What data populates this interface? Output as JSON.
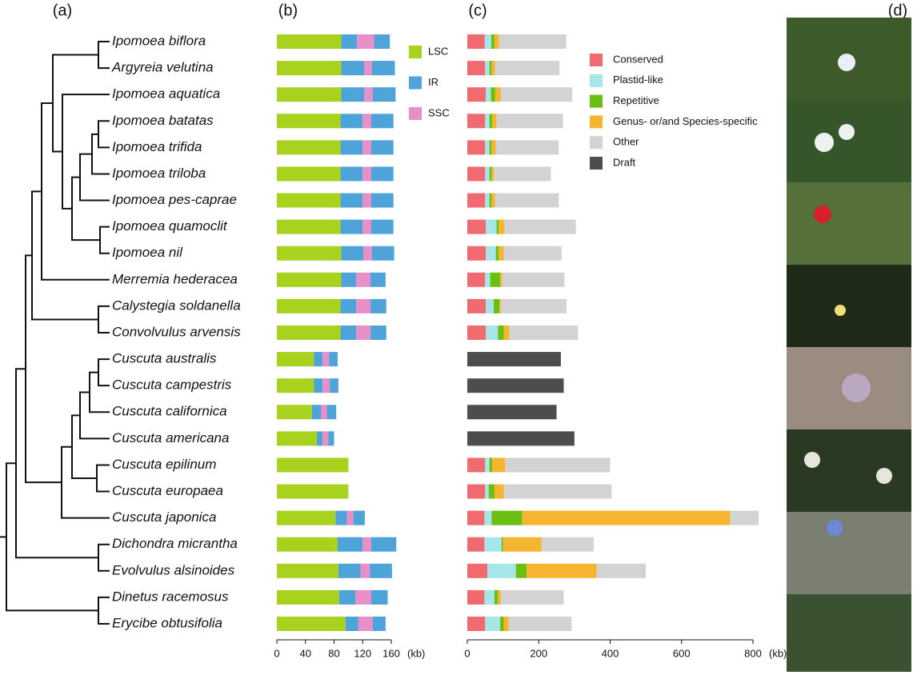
{
  "panel_labels": [
    "(a)",
    "(b)",
    "(c)",
    "(d)"
  ],
  "chart_data": [
    {
      "type": "bar",
      "orientation": "horizontal",
      "stacked": true,
      "categories": [
        "Ipomoea biflora",
        "Argyreia velutina",
        "Ipomoea aquatica",
        "Ipomoea batatas",
        "Ipomoea trifida",
        "Ipomoea triloba",
        "Ipomoea pes-caprae",
        "Ipomoea quamoclit",
        "Ipomoea nil",
        "Merremia hederacea",
        "Calystegia soldanella",
        "Convolvulus arvensis",
        "Cuscuta australis",
        "Cuscuta campestris",
        "Cuscuta californica",
        "Cuscuta americana",
        "Cuscuta epilinum",
        "Cuscuta europaea",
        "Cuscuta japonica",
        "Dichondra micrantha",
        "Evolvulus alsinoides",
        "Dinetus racemosus",
        "Erycibe obtusifolia"
      ],
      "series": [
        {
          "name": "LSC",
          "color": "#a8d21e",
          "values": [
            90,
            90,
            90,
            89,
            89,
            89,
            89,
            89,
            90,
            90,
            89,
            89,
            52,
            52,
            49,
            56,
            100,
            100,
            82,
            85,
            86,
            87,
            96
          ]
        },
        {
          "name": "IR",
          "color": "#4ea3d8",
          "values": [
            22,
            32,
            32,
            31,
            31,
            31,
            31,
            31,
            31,
            21,
            22,
            22,
            12,
            12,
            13,
            8,
            0,
            0,
            16,
            35,
            31,
            23,
            18
          ]
        },
        {
          "name": "SSC",
          "color": "#e68fc8",
          "values": [
            24,
            11,
            12,
            12,
            12,
            12,
            12,
            12,
            12,
            20,
            20,
            20,
            9,
            10,
            8,
            8,
            0,
            0,
            9,
            12,
            13,
            22,
            20
          ]
        }
      ],
      "xlim": [
        0,
        160
      ],
      "xticks": [
        0,
        40,
        80,
        120,
        160
      ],
      "x_unit": "(kb)"
    },
    {
      "type": "bar",
      "orientation": "horizontal",
      "stacked": true,
      "series": [
        {
          "name": "Conserved",
          "color": "#ef6b6f",
          "values": [
            49,
            50,
            52,
            50,
            50,
            50,
            50,
            52,
            52,
            50,
            52,
            52,
            null,
            null,
            null,
            null,
            50,
            50,
            48,
            48,
            56,
            48,
            50
          ]
        },
        {
          "name": "Plastid-like",
          "color": "#a6e6e8",
          "values": [
            18,
            12,
            14,
            12,
            12,
            12,
            12,
            30,
            28,
            14,
            22,
            34,
            null,
            null,
            null,
            null,
            12,
            10,
            20,
            48,
            80,
            28,
            42
          ]
        },
        {
          "name": "Repetitive",
          "color": "#6abf12",
          "values": [
            9,
            6,
            12,
            8,
            6,
            6,
            6,
            6,
            8,
            28,
            16,
            16,
            null,
            null,
            null,
            null,
            8,
            16,
            86,
            4,
            30,
            10,
            10
          ]
        },
        {
          "name": "Genus- or/and Species-specific",
          "color": "#f6b530",
          "values": [
            13,
            10,
            16,
            12,
            12,
            6,
            10,
            16,
            14,
            6,
            4,
            16,
            null,
            null,
            null,
            null,
            36,
            26,
            582,
            108,
            196,
            8,
            14
          ]
        },
        {
          "name": "Other",
          "color": "#d3d3d3",
          "values": [
            188,
            180,
            200,
            186,
            176,
            160,
            178,
            200,
            162,
            174,
            184,
            192,
            null,
            null,
            null,
            null,
            294,
            302,
            80,
            146,
            138,
            176,
            176
          ]
        },
        {
          "name": "Draft",
          "color": "#4d4d4d",
          "values": [
            null,
            null,
            null,
            null,
            null,
            null,
            null,
            null,
            null,
            null,
            null,
            null,
            262,
            270,
            250,
            300,
            null,
            null,
            null,
            null,
            null,
            null,
            null
          ]
        }
      ],
      "xlim": [
        0,
        800
      ],
      "xticks": [
        0,
        200,
        400,
        600,
        800
      ],
      "x_unit": "(kb)"
    }
  ]
}
